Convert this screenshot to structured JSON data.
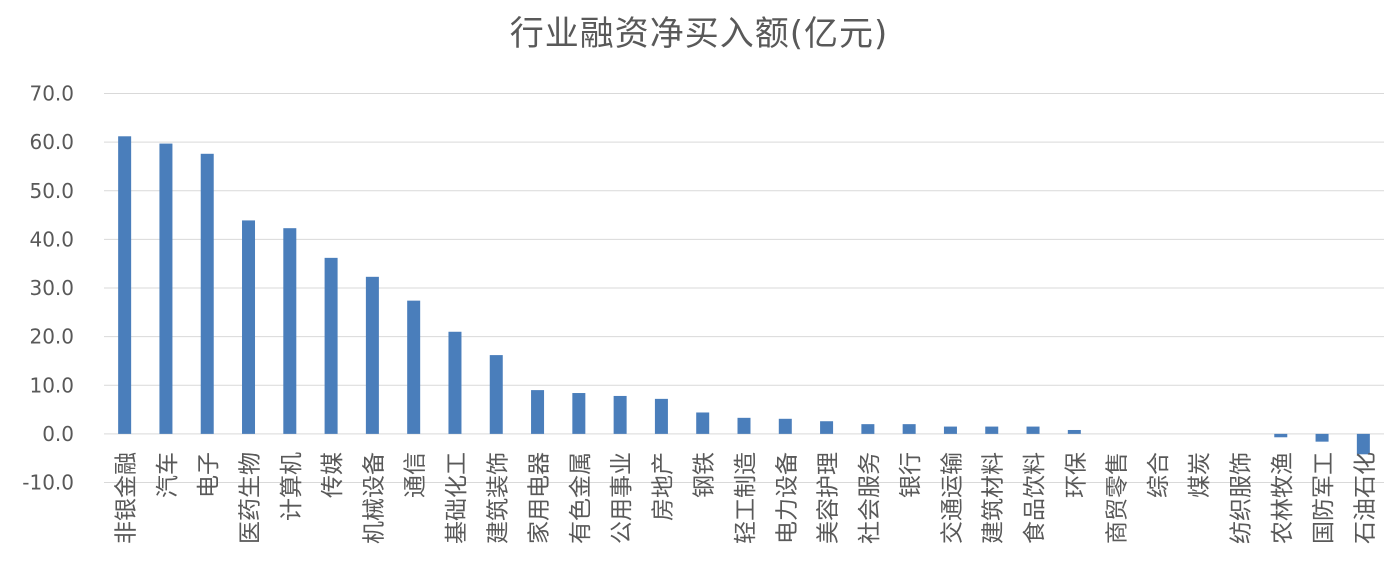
{
  "chart_data": {
    "type": "bar",
    "title": "行业融资净买入额(亿元)",
    "xlabel": "",
    "ylabel": "",
    "ylim": [
      -10,
      70
    ],
    "yticks": [
      "70.0",
      "60.0",
      "50.0",
      "40.0",
      "30.0",
      "20.0",
      "10.0",
      "0.0",
      "-10.0"
    ],
    "grid": true,
    "legend": "none",
    "bar_color": "#4a7ebb",
    "categories": [
      "非银金融",
      "汽车",
      "电子",
      "医药生物",
      "计算机",
      "传媒",
      "机械设备",
      "通信",
      "基础化工",
      "建筑装饰",
      "家用电器",
      "有色金属",
      "公用事业",
      "房地产",
      "钢铁",
      "轻工制造",
      "电力设备",
      "美容护理",
      "社会服务",
      "银行",
      "交通运输",
      "建筑材料",
      "食品饮料",
      "环保",
      "商贸零售",
      "综合",
      "煤炭",
      "纺织服饰",
      "农林牧渔",
      "国防军工",
      "石油石化"
    ],
    "values": [
      61.2,
      59.7,
      57.6,
      43.9,
      42.3,
      36.2,
      32.3,
      27.4,
      21.0,
      16.2,
      9.0,
      8.4,
      7.8,
      7.2,
      4.4,
      3.3,
      3.1,
      2.6,
      2.0,
      2.0,
      1.5,
      1.5,
      1.5,
      0.8,
      0.0,
      0.0,
      0.0,
      0.0,
      -0.7,
      -1.6,
      -4.2
    ]
  }
}
